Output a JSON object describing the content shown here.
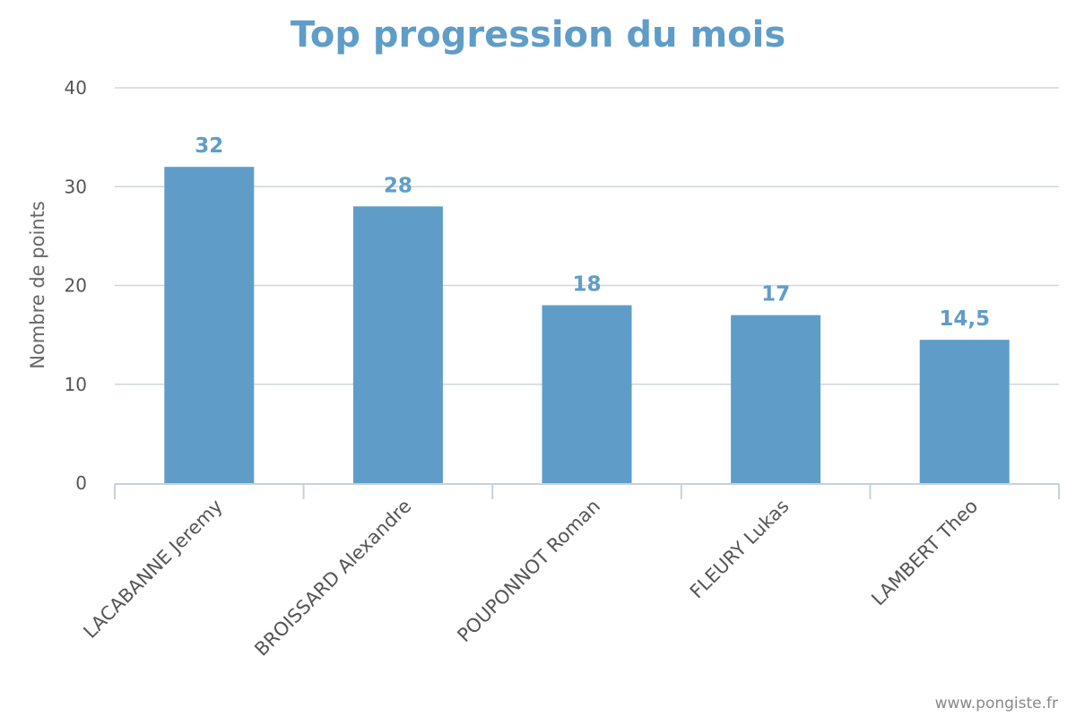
{
  "chart_data": {
    "type": "bar",
    "title": "Top progression du mois",
    "ylabel": "Nombre de points",
    "xlabel": "",
    "ylim": [
      0,
      40
    ],
    "yticks": [
      0,
      10,
      20,
      30,
      40
    ],
    "categories": [
      "LACABANNE Jeremy",
      "BROISSARD Alexandre",
      "POUPONNOT Roman",
      "FLEURY Lukas",
      "LAMBERT Theo"
    ],
    "values": [
      32,
      28,
      18,
      17,
      14.5
    ],
    "data_labels": [
      "32",
      "28",
      "18",
      "17",
      "14,5"
    ],
    "grid": true,
    "legend": "none"
  },
  "credit": "www.pongiste.fr",
  "colors": {
    "bar": "#5f9dc8",
    "title": "#5f9dc8",
    "data_label": "#5f9dc8",
    "grid": "#d0d6de",
    "axis": "#c6d1dd"
  }
}
